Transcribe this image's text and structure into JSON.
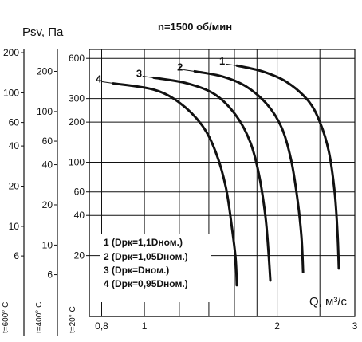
{
  "chart_data": {
    "type": "line",
    "title": "n=1500 об/мин",
    "ylabel": "Psv, Па",
    "xlabel": "Q, м³/с",
    "x_scale": "log",
    "y_scale": "log",
    "xlim": [
      0.75,
      3
    ],
    "ylim": [
      7,
      700
    ],
    "x_ticks": [
      "0,8",
      "1",
      "2",
      "3"
    ],
    "y_axes": [
      {
        "label": "t=20° C",
        "ticks": [
          "20",
          "40",
          "60",
          "100",
          "200",
          "300",
          "600"
        ]
      },
      {
        "label": "t=400° C",
        "ticks": [
          "6",
          "10",
          "20",
          "40",
          "60",
          "100",
          "200"
        ]
      },
      {
        "label": "t=600° C",
        "ticks": [
          "6",
          "10",
          "20",
          "40",
          "60",
          "100",
          "200"
        ]
      }
    ],
    "series": [
      {
        "name": "1",
        "x": [
          1.62,
          1.85,
          2.1,
          2.35,
          2.5,
          2.62,
          2.7,
          2.74,
          2.76
        ],
        "y": [
          530,
          480,
          400,
          290,
          200,
          120,
          60,
          30,
          16
        ]
      },
      {
        "name": "2",
        "x": [
          1.3,
          1.5,
          1.7,
          1.9,
          2.05,
          2.15,
          2.22,
          2.27,
          2.29
        ],
        "y": [
          480,
          440,
          370,
          270,
          180,
          105,
          55,
          28,
          15
        ]
      },
      {
        "name": "3",
        "x": [
          1.05,
          1.25,
          1.45,
          1.62,
          1.74,
          1.82,
          1.88,
          1.91,
          1.93
        ],
        "y": [
          430,
          390,
          320,
          220,
          140,
          80,
          40,
          22,
          13
        ]
      },
      {
        "name": "4",
        "x": [
          0.85,
          1.05,
          1.2,
          1.35,
          1.45,
          1.53,
          1.58,
          1.61,
          1.62
        ],
        "y": [
          390,
          350,
          280,
          190,
          120,
          65,
          32,
          19,
          12
        ]
      }
    ],
    "legend": [
      "1 (Dрк=1,1Dном.)",
      "2 (Dрк=1,05Dном.)",
      "3 (Dрк=Dном.)",
      "4 (Dрк=0,95Dном.)"
    ],
    "legend_position": "bottom-left",
    "grid": true
  }
}
